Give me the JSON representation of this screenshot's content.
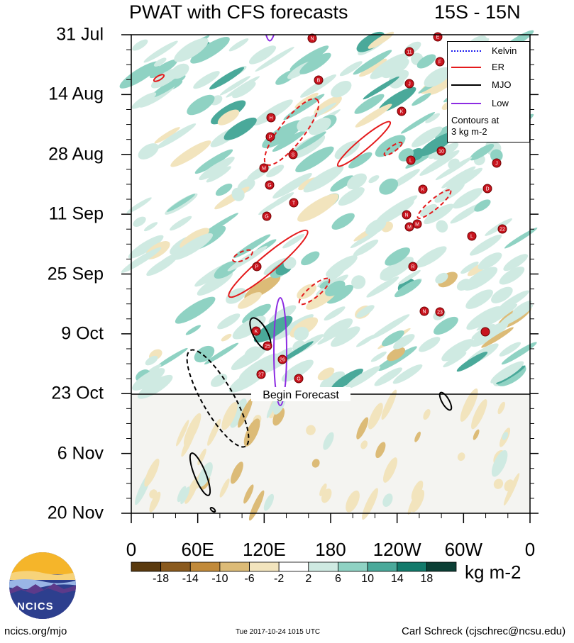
{
  "title": {
    "left": "PWAT with CFS forecasts",
    "right": "15S - 15N"
  },
  "chart_data": {
    "type": "heatmap",
    "title": "PWAT with CFS forecasts",
    "subtitle": "15S - 15N",
    "y_axis": {
      "ticks": [
        "31 Jul",
        "14 Aug",
        "28 Aug",
        "11 Sep",
        "25 Sep",
        "9 Oct",
        "23 Oct",
        "6 Nov",
        "20 Nov"
      ],
      "direction": "time increasing downward"
    },
    "x_axis": {
      "ticks": [
        "0",
        "60E",
        "120E",
        "180",
        "120W",
        "60W",
        "0"
      ],
      "range": [
        "0",
        "0 (360)"
      ]
    },
    "colorbar": {
      "units": "kg m-2",
      "ticks": [
        "-18",
        "-14",
        "-10",
        "-6",
        "-2",
        "2",
        "6",
        "10",
        "14",
        "18"
      ],
      "colors": [
        "#5a3a0e",
        "#8a5a1e",
        "#c18a3a",
        "#dcbb77",
        "#f2e4bd",
        "#ffffff",
        "#cfeae2",
        "#8fd2c3",
        "#4aa99a",
        "#127a6b",
        "#0b3f35"
      ]
    },
    "legend": {
      "placement": "top-right",
      "entries": [
        {
          "name": "Kelvin",
          "color": "#1a1aee"
        },
        {
          "name": "ER",
          "color": "#e41a1c"
        },
        {
          "name": "MJO",
          "color": "#000000"
        },
        {
          "name": "Low",
          "color": "#8c2be2"
        }
      ],
      "note": [
        "Contours at",
        "3 kg m-2"
      ]
    },
    "annotation": "Begin Forecast",
    "forecast_start": "23 Oct",
    "storm_labels": [
      "N",
      "11",
      "E",
      "F",
      "B",
      "J",
      "K",
      "H",
      "P",
      "S",
      "10",
      "L",
      "M",
      "G",
      "T",
      "K",
      "J",
      "D",
      "G",
      "N",
      "M",
      "M",
      "L",
      "22",
      "P",
      "R",
      "N",
      "23",
      "K",
      "25",
      "26",
      "27",
      "G"
    ]
  },
  "footer": {
    "left": "ncics.org/mjo",
    "mid": "Tue 2017-10-24 1015 UTC",
    "right": "Carl Schreck (cjschrec@ncsu.edu)"
  },
  "logo": {
    "text": "NCICS"
  }
}
